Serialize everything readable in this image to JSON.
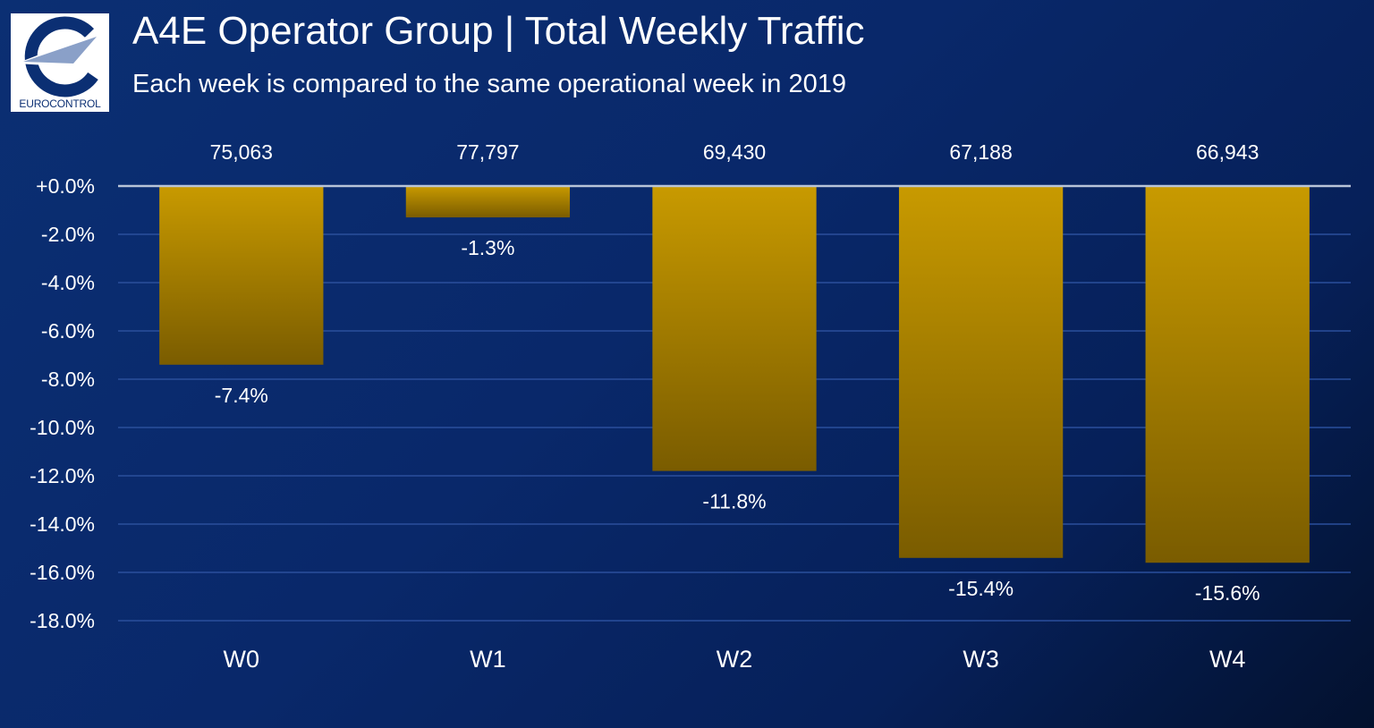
{
  "header": {
    "title": "A4E Operator Group | Total Weekly Traffic",
    "subtitle": "Each week is compared to the same operational week in 2019",
    "logo_text": "EUROCONTROL"
  },
  "colors": {
    "background": "#0b2f73",
    "bar_top": "#c89a00",
    "bar_bottom": "#7a5c00",
    "gridline": "#2a4f9c",
    "zero_line": "#b8c4d8",
    "text": "#ffffff"
  },
  "chart_data": {
    "type": "bar",
    "title": "A4E Operator Group | Total Weekly Traffic",
    "subtitle": "Each week is compared to the same operational week in 2019",
    "categories": [
      "W0",
      "W1",
      "W2",
      "W3",
      "W4"
    ],
    "values": [
      -7.4,
      -1.3,
      -11.8,
      -15.4,
      -15.6
    ],
    "value_labels": [
      "-7.4%",
      "-1.3%",
      "-11.8%",
      "-15.4%",
      "-15.6%"
    ],
    "top_labels": [
      "75,063",
      "77,797",
      "69,430",
      "67,188",
      "66,943"
    ],
    "ylim": [
      -18,
      0
    ],
    "yticks": [
      0,
      -2,
      -4,
      -6,
      -8,
      -10,
      -12,
      -14,
      -16,
      -18
    ],
    "ytick_labels": [
      "+0.0%",
      "-2.0%",
      "-4.0%",
      "-6.0%",
      "-8.0%",
      "-10.0%",
      "-12.0%",
      "-14.0%",
      "-16.0%",
      "-18.0%"
    ],
    "grid": true,
    "legend": "none"
  }
}
